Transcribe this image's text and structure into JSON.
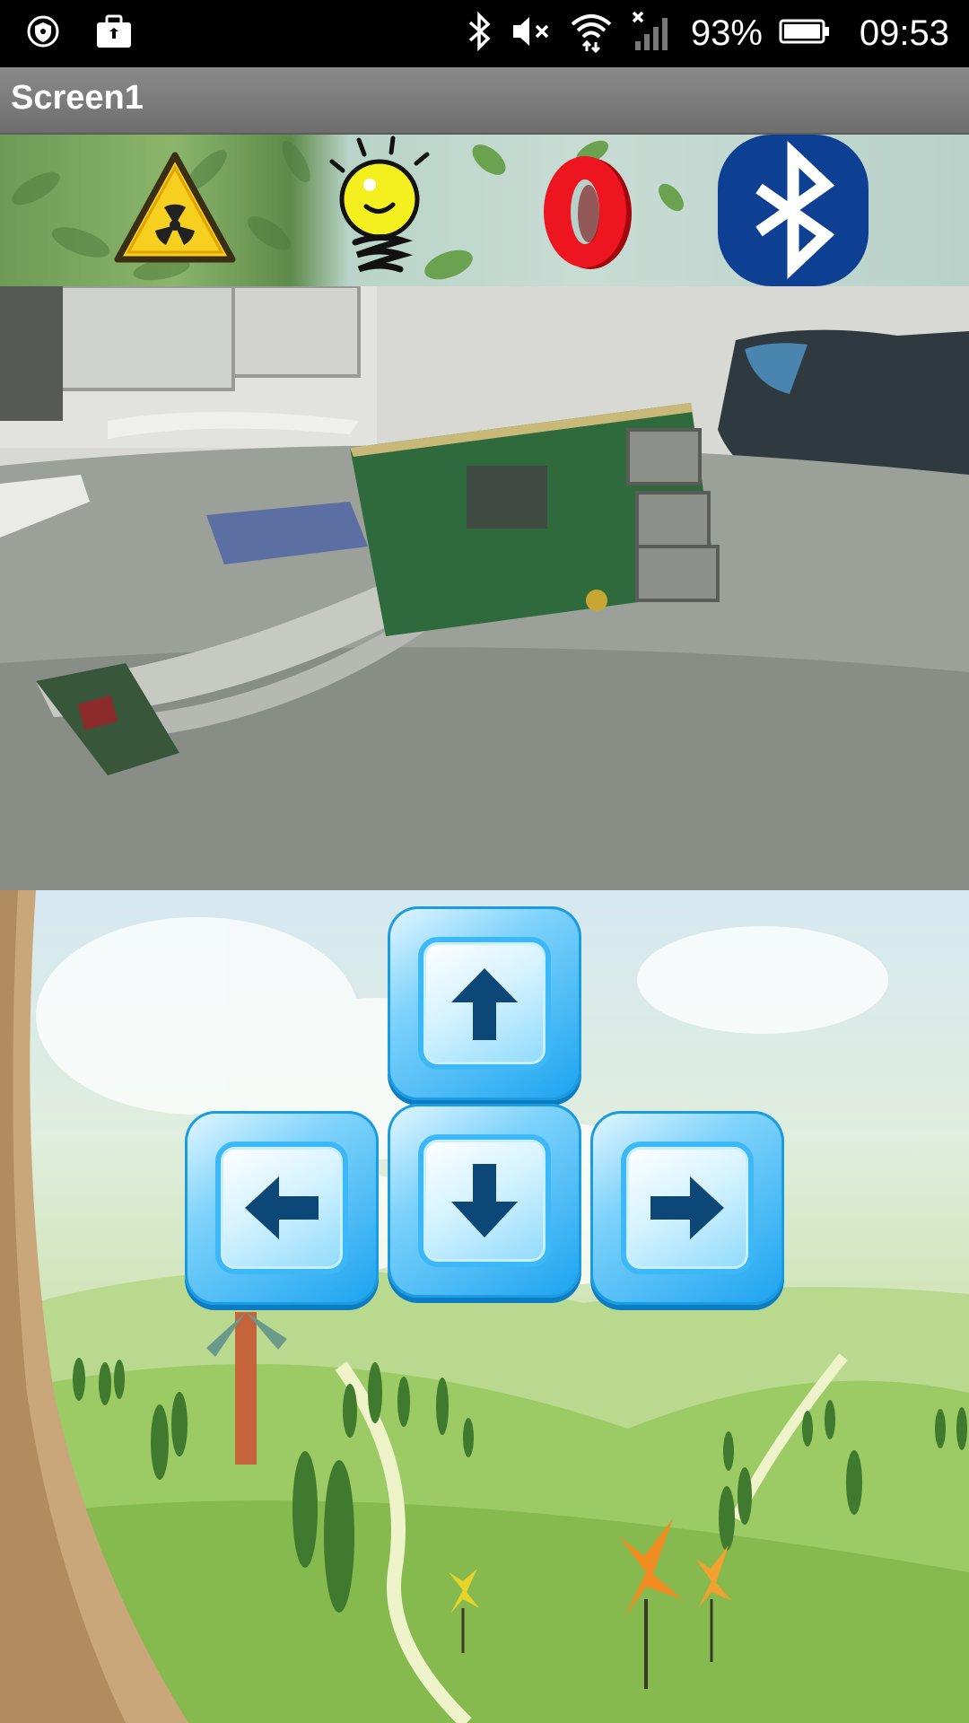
{
  "status_bar": {
    "battery_percent": "93%",
    "time": "09:53",
    "icons": [
      "shield-icon",
      "work-profile-icon",
      "bluetooth-icon",
      "mute-icon",
      "wifi-icon",
      "no-signal-icon",
      "battery-icon"
    ]
  },
  "title_bar": {
    "title": "Screen1"
  },
  "toolbar": {
    "buttons": [
      "radiation-warning-icon",
      "light-bulb-icon",
      "zero-counter-icon",
      "bluetooth-icon"
    ],
    "counter_value": "0",
    "colors": {
      "bluetooth_bg": "#0d3f93",
      "counter": "#e8101a",
      "bulb": "#f6f21a"
    }
  },
  "camera": {
    "description_icon": "camera-feed-image"
  },
  "controls": {
    "buttons": [
      "up-arrow-button",
      "left-arrow-button",
      "down-arrow-button",
      "right-arrow-button"
    ],
    "colors": {
      "key": "#1ba3f0",
      "arrow": "#0d4777"
    }
  }
}
